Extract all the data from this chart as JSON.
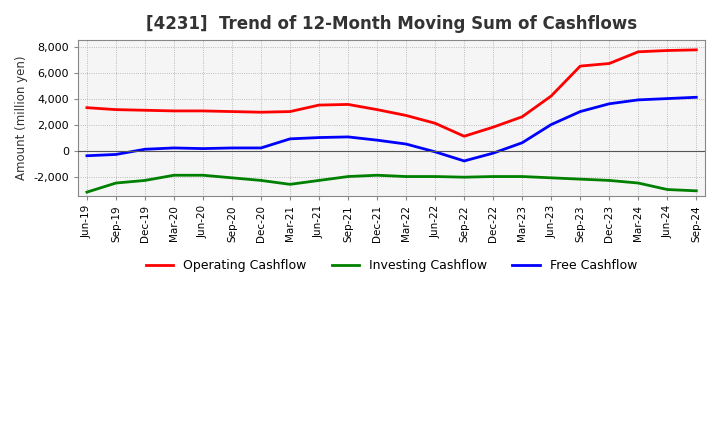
{
  "title": "[4231]  Trend of 12-Month Moving Sum of Cashflows",
  "ylabel": "Amount (million yen)",
  "ylim": [
    -3500,
    8500
  ],
  "yticks": [
    -2000,
    0,
    2000,
    4000,
    6000,
    8000
  ],
  "background_color": "#ffffff",
  "plot_bg_color": "#f5f5f5",
  "grid_color": "#aaaaaa",
  "dates": [
    "Jun-19",
    "Sep-19",
    "Dec-19",
    "Mar-20",
    "Jun-20",
    "Sep-20",
    "Dec-20",
    "Mar-21",
    "Jun-21",
    "Sep-21",
    "Dec-21",
    "Mar-22",
    "Jun-22",
    "Sep-22",
    "Dec-22",
    "Mar-23",
    "Jun-23",
    "Sep-23",
    "Dec-23",
    "Mar-24",
    "Jun-24",
    "Sep-24"
  ],
  "operating": [
    3300,
    3150,
    3100,
    3050,
    3050,
    3000,
    2950,
    3000,
    3500,
    3550,
    3150,
    2700,
    2100,
    1100,
    1800,
    2600,
    4200,
    6500,
    6700,
    7600,
    7700,
    7750
  ],
  "investing": [
    -3200,
    -2500,
    -2300,
    -1900,
    -1900,
    -2100,
    -2300,
    -2600,
    -2300,
    -2000,
    -1900,
    -2000,
    -2000,
    -2050,
    -2000,
    -2000,
    -2100,
    -2200,
    -2300,
    -2500,
    -3000,
    -3100
  ],
  "free": [
    -400,
    -300,
    100,
    200,
    150,
    200,
    200,
    900,
    1000,
    1050,
    800,
    500,
    -100,
    -800,
    -200,
    600,
    2000,
    3000,
    3600,
    3900,
    4000,
    4100
  ],
  "operating_color": "#ff0000",
  "investing_color": "#008000",
  "free_color": "#0000ff",
  "legend_labels": [
    "Operating Cashflow",
    "Investing Cashflow",
    "Free Cashflow"
  ],
  "linewidth": 2.0
}
